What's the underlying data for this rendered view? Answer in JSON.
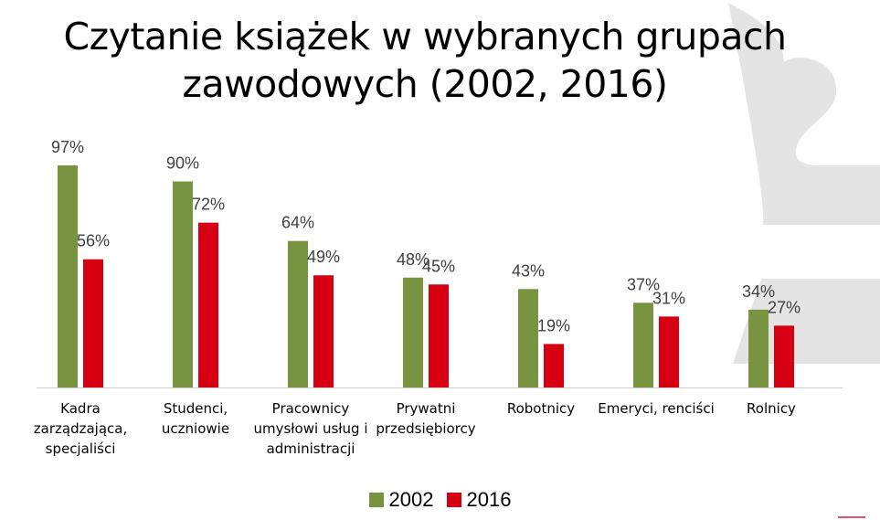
{
  "chart_data": {
    "type": "bar",
    "title": "Czytanie książek w wybranych grupach zawodowych (2002, 2016)",
    "title_lines": [
      "Czytanie książek w wybranych grupach",
      "zawodowych (2002, 2016)"
    ],
    "categories": [
      [
        "Kadra",
        "zarządzająca,",
        "specjaliści"
      ],
      [
        "Studenci,",
        "uczniowie"
      ],
      [
        "Pracownicy",
        "umysłowi usług i",
        "administracji"
      ],
      [
        "Prywatni",
        "przedsiębiorcy"
      ],
      [
        "Robotnicy"
      ],
      [
        "Emeryci, renciści"
      ],
      [
        "Rolnicy"
      ]
    ],
    "series": [
      {
        "name": "2002",
        "color": "#789440",
        "values": [
          97,
          90,
          64,
          48,
          43,
          37,
          34
        ]
      },
      {
        "name": "2016",
        "color": "#D60012",
        "values": [
          56,
          72,
          49,
          45,
          19,
          31,
          27
        ]
      }
    ],
    "value_suffix": "%",
    "ylim": [
      0,
      100
    ],
    "xlabel": "",
    "ylabel": "",
    "grid": false,
    "legend": "bottom-center"
  }
}
